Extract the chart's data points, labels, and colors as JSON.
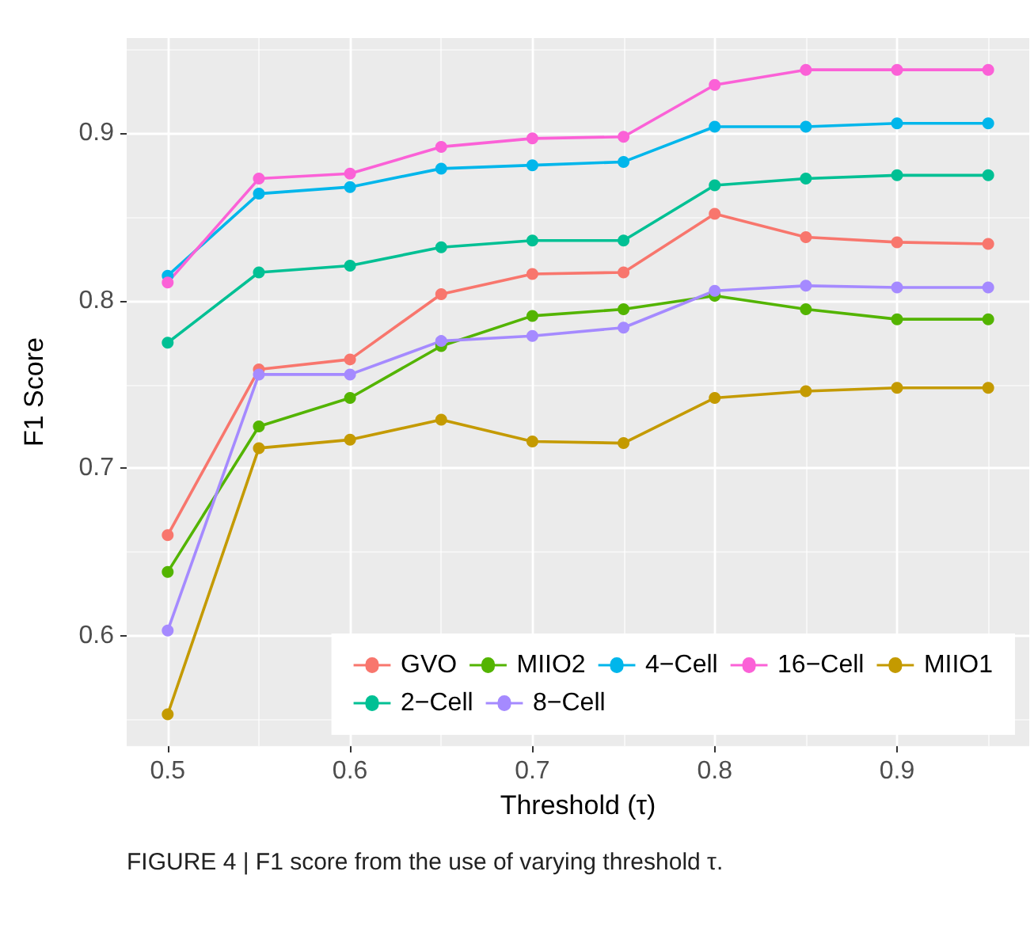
{
  "chart_data": {
    "type": "line",
    "xlabel": "Threshold (τ)",
    "ylabel": "F1 Score",
    "x": [
      0.5,
      0.55,
      0.6,
      0.65,
      0.7,
      0.75,
      0.8,
      0.85,
      0.9,
      0.95
    ],
    "series": [
      {
        "name": "GVO",
        "color": "#f8766d",
        "values": [
          0.66,
          0.759,
          0.765,
          0.804,
          0.816,
          0.817,
          0.852,
          0.838,
          0.835,
          0.834
        ]
      },
      {
        "name": "MIIO1",
        "color": "#c49a00",
        "values": [
          0.553,
          0.712,
          0.717,
          0.729,
          0.716,
          0.715,
          0.742,
          0.746,
          0.748,
          0.748
        ]
      },
      {
        "name": "MIIO2",
        "color": "#53b400",
        "values": [
          0.638,
          0.725,
          0.742,
          0.773,
          0.791,
          0.795,
          0.803,
          0.795,
          0.789,
          0.789
        ]
      },
      {
        "name": "2−Cell",
        "color": "#00c094",
        "values": [
          0.775,
          0.817,
          0.821,
          0.832,
          0.836,
          0.836,
          0.869,
          0.873,
          0.875,
          0.875
        ]
      },
      {
        "name": "4−Cell",
        "color": "#00b6eb",
        "values": [
          0.815,
          0.864,
          0.868,
          0.879,
          0.881,
          0.883,
          0.904,
          0.904,
          0.906,
          0.906
        ]
      },
      {
        "name": "8−Cell",
        "color": "#a58aff",
        "values": [
          0.603,
          0.756,
          0.756,
          0.776,
          0.779,
          0.784,
          0.806,
          0.809,
          0.808,
          0.808
        ]
      },
      {
        "name": "16−Cell",
        "color": "#fb61d7",
        "values": [
          0.811,
          0.873,
          0.876,
          0.892,
          0.897,
          0.898,
          0.929,
          0.938,
          0.938,
          0.938
        ]
      }
    ],
    "xlim": [
      0.4775,
      0.9725
    ],
    "xticks": [
      0.5,
      0.6,
      0.7,
      0.8,
      0.9
    ],
    "ylim": [
      0.534,
      0.957
    ],
    "yticks": [
      0.6,
      0.7,
      0.8,
      0.9
    ],
    "grid": true,
    "legend": "bottom right",
    "marker": "circle",
    "line_style": "solid",
    "annotations": [
      "FIGURE 4 | F1 score from the use of varying threshold τ."
    ]
  }
}
